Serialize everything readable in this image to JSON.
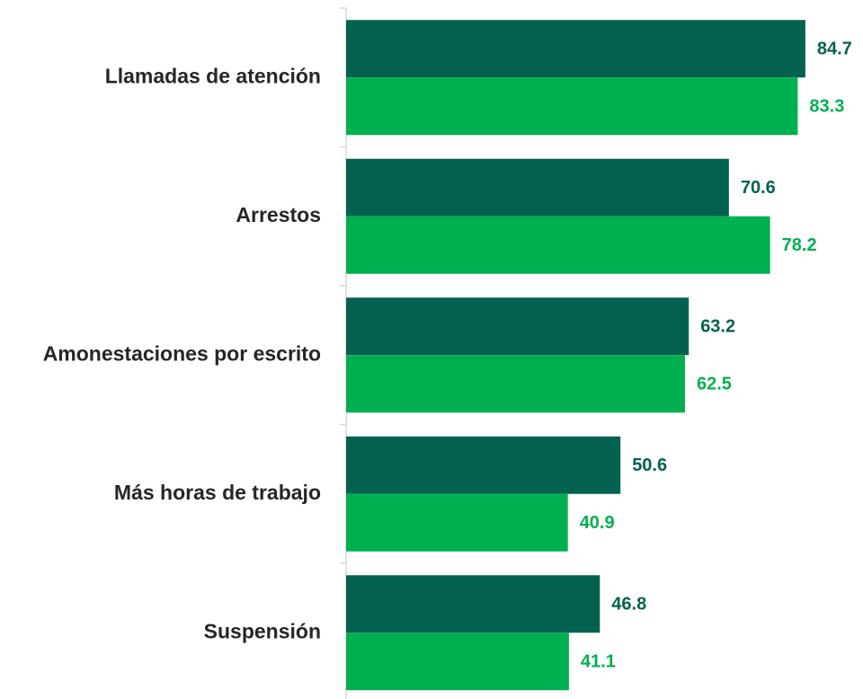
{
  "chart_data": {
    "type": "barh",
    "categories": [
      "Llamadas de atención",
      "Arrestos",
      "Amonestaciones por escrito",
      "Más horas de trabajo",
      "Suspensión"
    ],
    "series": [
      {
        "color": "#03624f",
        "values": [
          84.7,
          70.6,
          63.2,
          50.6,
          46.8
        ]
      },
      {
        "color": "#00b050",
        "values": [
          83.3,
          78.2,
          62.5,
          40.9,
          41.1
        ]
      }
    ],
    "xlim": [
      0,
      95
    ]
  }
}
